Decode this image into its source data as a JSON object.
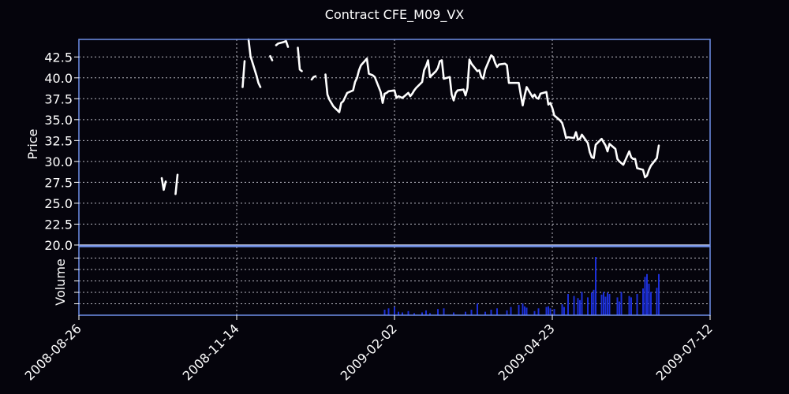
{
  "chart_data": {
    "type": "line",
    "title": "Contract CFE_M09_VX",
    "price_panel": {
      "ylabel": "Price",
      "ylim": [
        19.9,
        44.6
      ],
      "yticks": [
        "20.0",
        "22.5",
        "25.0",
        "27.5",
        "30.0",
        "32.5",
        "35.0",
        "37.5",
        "40.0",
        "42.5"
      ],
      "grid": true
    },
    "volume_panel": {
      "ylabel": "Volume",
      "ylim": [
        0,
        100
      ],
      "grid": true
    },
    "x_axis": {
      "range": [
        "2008-08-26",
        "2009-07-12"
      ],
      "ticks": [
        "2008-08-26",
        "2008-11-14",
        "2009-02-02",
        "2009-04-23",
        "2009-07-12"
      ]
    },
    "series": [
      {
        "name": "Price",
        "color": "#ffffff",
        "segments": [
          [
            [
              "2008-10-07",
              28.0
            ],
            [
              "2008-10-08",
              26.6
            ],
            [
              "2008-10-09",
              27.6
            ]
          ],
          [
            [
              "2008-10-14",
              26.1
            ],
            [
              "2008-10-15",
              28.4
            ]
          ],
          [
            [
              "2008-11-17",
              38.9
            ],
            [
              "2008-11-18",
              42.0
            ]
          ],
          [
            [
              "2008-11-20",
              44.6
            ],
            [
              "2008-11-21",
              42.6
            ],
            [
              "2008-11-24",
              40.3
            ],
            [
              "2008-11-25",
              39.4
            ],
            [
              "2008-11-26",
              38.9
            ]
          ],
          [
            [
              "2008-12-01",
              42.6
            ],
            [
              "2008-12-02",
              42.1
            ]
          ],
          [
            [
              "2008-12-04",
              43.9
            ],
            [
              "2008-12-05",
              44.1
            ],
            [
              "2008-12-08",
              44.3
            ],
            [
              "2008-12-09",
              44.4
            ],
            [
              "2008-12-10",
              43.7
            ]
          ],
          [
            [
              "2008-12-15",
              43.6
            ],
            [
              "2008-12-16",
              41.0
            ],
            [
              "2008-12-17",
              40.8
            ]
          ],
          [
            [
              "2008-12-22",
              39.8
            ],
            [
              "2008-12-23",
              40.1
            ],
            [
              "2008-12-24",
              40.2
            ]
          ],
          [
            [
              "2008-12-29",
              40.4
            ],
            [
              "2008-12-30",
              38.0
            ],
            [
              "2008-12-31",
              37.4
            ],
            [
              "2009-01-02",
              36.6
            ],
            [
              "2009-01-05",
              35.9
            ],
            [
              "2009-01-06",
              37.0
            ],
            [
              "2009-01-07",
              37.2
            ],
            [
              "2009-01-08",
              37.7
            ],
            [
              "2009-01-09",
              38.2
            ],
            [
              "2009-01-12",
              38.5
            ],
            [
              "2009-01-13",
              39.5
            ],
            [
              "2009-01-14",
              40.0
            ],
            [
              "2009-01-15",
              40.9
            ],
            [
              "2009-01-16",
              41.5
            ],
            [
              "2009-01-19",
              42.3
            ],
            [
              "2009-01-20",
              40.5
            ],
            [
              "2009-01-21",
              40.4
            ],
            [
              "2009-01-22",
              40.3
            ],
            [
              "2009-01-23",
              40.1
            ],
            [
              "2009-01-26",
              38.3
            ],
            [
              "2009-01-27",
              37.0
            ],
            [
              "2009-01-28",
              38.1
            ],
            [
              "2009-01-29",
              38.2
            ],
            [
              "2009-01-30",
              38.4
            ],
            [
              "2009-02-02",
              38.5
            ],
            [
              "2009-02-03",
              37.6
            ],
            [
              "2009-02-04",
              37.8
            ],
            [
              "2009-02-05",
              37.7
            ],
            [
              "2009-02-06",
              37.6
            ],
            [
              "2009-02-09",
              38.2
            ],
            [
              "2009-02-10",
              37.8
            ],
            [
              "2009-02-11",
              38.1
            ],
            [
              "2009-02-12",
              38.5
            ],
            [
              "2009-02-13",
              38.8
            ],
            [
              "2009-02-16",
              39.5
            ],
            [
              "2009-02-17",
              40.9
            ],
            [
              "2009-02-18",
              41.4
            ],
            [
              "2009-02-19",
              42.1
            ],
            [
              "2009-02-20",
              40.1
            ],
            [
              "2009-02-23",
              40.8
            ],
            [
              "2009-02-24",
              41.2
            ],
            [
              "2009-02-25",
              42.0
            ],
            [
              "2009-02-26",
              42.1
            ],
            [
              "2009-02-27",
              39.9
            ],
            [
              "2009-03-02",
              40.1
            ],
            [
              "2009-03-03",
              38.0
            ],
            [
              "2009-03-04",
              37.3
            ],
            [
              "2009-03-05",
              38.2
            ],
            [
              "2009-03-06",
              38.5
            ],
            [
              "2009-03-09",
              38.6
            ],
            [
              "2009-03-10",
              37.9
            ],
            [
              "2009-03-11",
              38.8
            ],
            [
              "2009-03-12",
              42.2
            ],
            [
              "2009-03-13",
              41.7
            ],
            [
              "2009-03-16",
              40.8
            ],
            [
              "2009-03-17",
              40.9
            ],
            [
              "2009-03-18",
              40.1
            ],
            [
              "2009-03-19",
              39.9
            ],
            [
              "2009-03-20",
              41.0
            ],
            [
              "2009-03-23",
              42.7
            ],
            [
              "2009-03-24",
              42.5
            ],
            [
              "2009-03-25",
              41.8
            ],
            [
              "2009-03-26",
              41.3
            ],
            [
              "2009-03-27",
              41.6
            ],
            [
              "2009-03-30",
              41.7
            ],
            [
              "2009-03-31",
              41.5
            ],
            [
              "2009-04-01",
              39.4
            ],
            [
              "2009-04-02",
              39.4
            ],
            [
              "2009-04-03",
              39.4
            ],
            [
              "2009-04-06",
              39.4
            ],
            [
              "2009-04-07",
              38.0
            ],
            [
              "2009-04-08",
              36.7
            ],
            [
              "2009-04-09",
              37.9
            ],
            [
              "2009-04-10",
              38.9
            ],
            [
              "2009-04-13",
              37.7
            ],
            [
              "2009-04-14",
              38.0
            ],
            [
              "2009-04-15",
              37.6
            ],
            [
              "2009-04-16",
              37.5
            ],
            [
              "2009-04-17",
              38.1
            ],
            [
              "2009-04-20",
              38.3
            ],
            [
              "2009-04-21",
              36.8
            ],
            [
              "2009-04-22",
              37.0
            ],
            [
              "2009-04-23",
              36.4
            ],
            [
              "2009-04-24",
              35.5
            ],
            [
              "2009-04-27",
              34.9
            ],
            [
              "2009-04-28",
              34.6
            ],
            [
              "2009-04-29",
              33.8
            ],
            [
              "2009-04-30",
              32.8
            ],
            [
              "2009-05-01",
              32.9
            ],
            [
              "2009-05-04",
              32.8
            ],
            [
              "2009-05-05",
              33.5
            ],
            [
              "2009-05-06",
              32.6
            ],
            [
              "2009-05-07",
              32.7
            ],
            [
              "2009-05-08",
              33.2
            ],
            [
              "2009-05-11",
              32.2
            ],
            [
              "2009-05-12",
              31.1
            ],
            [
              "2009-05-13",
              30.5
            ],
            [
              "2009-05-14",
              30.4
            ],
            [
              "2009-05-15",
              32.0
            ],
            [
              "2009-05-18",
              32.7
            ],
            [
              "2009-05-19",
              32.3
            ],
            [
              "2009-05-20",
              31.9
            ],
            [
              "2009-05-21",
              31.2
            ],
            [
              "2009-05-22",
              32.1
            ],
            [
              "2009-05-25",
              31.5
            ],
            [
              "2009-05-26",
              30.3
            ],
            [
              "2009-05-27",
              30.0
            ],
            [
              "2009-05-28",
              29.8
            ],
            [
              "2009-05-29",
              29.6
            ],
            [
              "2009-06-01",
              31.2
            ],
            [
              "2009-06-02",
              30.5
            ],
            [
              "2009-06-03",
              30.3
            ],
            [
              "2009-06-04",
              30.3
            ],
            [
              "2009-06-05",
              29.2
            ],
            [
              "2009-06-08",
              29.0
            ],
            [
              "2009-06-09",
              28.1
            ],
            [
              "2009-06-10",
              28.3
            ],
            [
              "2009-06-11",
              29.0
            ],
            [
              "2009-06-12",
              29.5
            ],
            [
              "2009-06-15",
              30.4
            ],
            [
              "2009-06-16",
              31.9
            ]
          ]
        ]
      },
      {
        "name": "Volume",
        "color": "#1c2fd8",
        "type": "bar",
        "values": [
          [
            "2009-01-28",
            8
          ],
          [
            "2009-01-30",
            10
          ],
          [
            "2009-02-02",
            12
          ],
          [
            "2009-02-04",
            5
          ],
          [
            "2009-02-06",
            4
          ],
          [
            "2009-02-09",
            6
          ],
          [
            "2009-02-12",
            3
          ],
          [
            "2009-02-16",
            4
          ],
          [
            "2009-02-18",
            7
          ],
          [
            "2009-02-20",
            3
          ],
          [
            "2009-02-24",
            9
          ],
          [
            "2009-02-27",
            10
          ],
          [
            "2009-03-04",
            4
          ],
          [
            "2009-03-10",
            5
          ],
          [
            "2009-03-13",
            8
          ],
          [
            "2009-03-16",
            17
          ],
          [
            "2009-03-20",
            5
          ],
          [
            "2009-03-23",
            8
          ],
          [
            "2009-03-26",
            10
          ],
          [
            "2009-03-31",
            7
          ],
          [
            "2009-04-02",
            12
          ],
          [
            "2009-04-06",
            15
          ],
          [
            "2009-04-08",
            17
          ],
          [
            "2009-04-09",
            13
          ],
          [
            "2009-04-10",
            11
          ],
          [
            "2009-04-14",
            6
          ],
          [
            "2009-04-16",
            10
          ],
          [
            "2009-04-20",
            12
          ],
          [
            "2009-04-21",
            13
          ],
          [
            "2009-04-22",
            10
          ],
          [
            "2009-04-24",
            9
          ],
          [
            "2009-04-28",
            16
          ],
          [
            "2009-04-29",
            12
          ],
          [
            "2009-05-01",
            31
          ],
          [
            "2009-05-04",
            28
          ],
          [
            "2009-05-06",
            25
          ],
          [
            "2009-05-07",
            22
          ],
          [
            "2009-05-08",
            34
          ],
          [
            "2009-05-11",
            26
          ],
          [
            "2009-05-13",
            33
          ],
          [
            "2009-05-14",
            37
          ],
          [
            "2009-05-15",
            85
          ],
          [
            "2009-05-18",
            30
          ],
          [
            "2009-05-19",
            34
          ],
          [
            "2009-05-20",
            27
          ],
          [
            "2009-05-21",
            33
          ],
          [
            "2009-05-22",
            31
          ],
          [
            "2009-05-26",
            26
          ],
          [
            "2009-05-27",
            20
          ],
          [
            "2009-05-28",
            34
          ],
          [
            "2009-06-01",
            28
          ],
          [
            "2009-06-02",
            26
          ],
          [
            "2009-06-05",
            31
          ],
          [
            "2009-06-08",
            39
          ],
          [
            "2009-06-09",
            56
          ],
          [
            "2009-06-10",
            60
          ],
          [
            "2009-06-11",
            46
          ],
          [
            "2009-06-12",
            34
          ],
          [
            "2009-06-15",
            40
          ],
          [
            "2009-06-16",
            60
          ]
        ]
      }
    ],
    "colors": {
      "background": "#05040c",
      "axes_frame": "#6f8fe8",
      "grid": "#b9b9c2",
      "text": "#ffffff"
    }
  }
}
